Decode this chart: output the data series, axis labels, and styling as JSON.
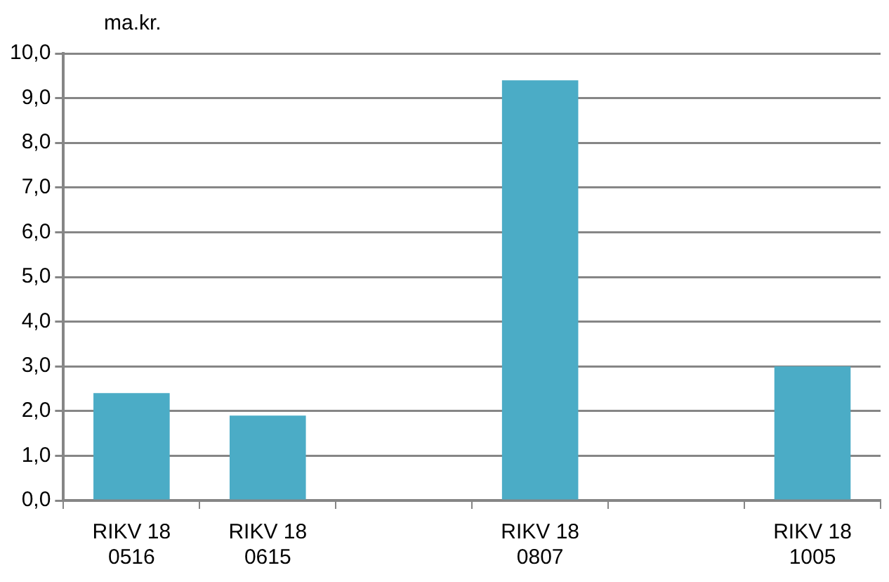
{
  "chart_data": {
    "type": "bar",
    "ylabel": "ma.kr.",
    "categories": [
      "RIKV 18 0516",
      "RIKV 18 0615",
      null,
      "RIKV 18 0807",
      null,
      "RIKV 18 1005"
    ],
    "values": [
      2.4,
      1.9,
      null,
      9.4,
      null,
      3.0
    ],
    "color": "#4bacc6",
    "ylim": [
      0,
      10
    ],
    "yticks": [
      {
        "value": 0,
        "label": "0,0"
      },
      {
        "value": 1,
        "label": "1,0"
      },
      {
        "value": 2,
        "label": "2,0"
      },
      {
        "value": 3,
        "label": "3,0"
      },
      {
        "value": 4,
        "label": "4,0"
      },
      {
        "value": 5,
        "label": "5,0"
      },
      {
        "value": 6,
        "label": "6,0"
      },
      {
        "value": 7,
        "label": "7,0"
      },
      {
        "value": 8,
        "label": "8,0"
      },
      {
        "value": 9,
        "label": "9,0"
      },
      {
        "value": 10,
        "label": "10,0"
      }
    ],
    "grid": "y",
    "legend": false
  }
}
